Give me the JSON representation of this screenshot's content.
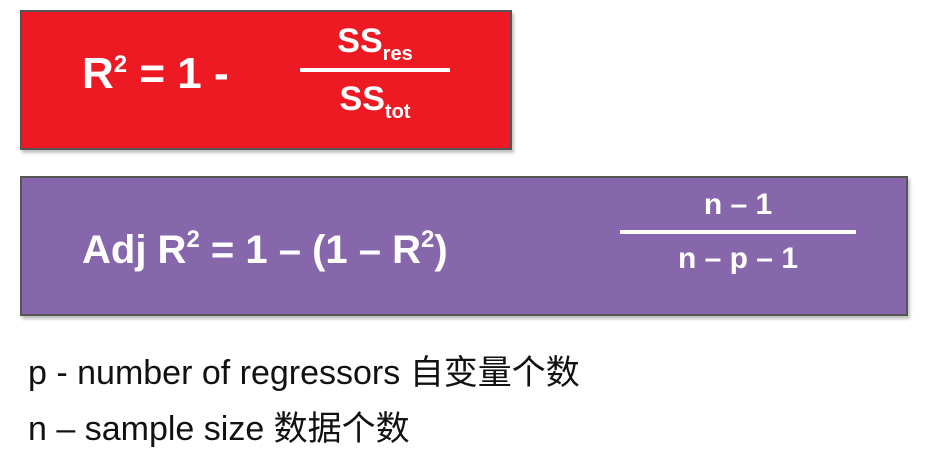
{
  "formula_r2": {
    "lhs_base": "R",
    "lhs_sup": "2",
    "lhs_rest": " = 1 -",
    "num_base": "SS",
    "num_sub": "res",
    "den_base": "SS",
    "den_sub": "tot",
    "bg_color": "#ee1a23"
  },
  "formula_adj": {
    "lhs_a": "Adj R",
    "lhs_sup1": "2",
    "lhs_b": " = 1 – (1 – R",
    "lhs_sup2": "2",
    "lhs_c": ")",
    "numerator": "n – 1",
    "denominator": "n – p – 1",
    "bg_color": "#8767ab"
  },
  "notes": {
    "p": "p - number of regressors 自变量个数",
    "n": "n – sample size 数据个数"
  }
}
